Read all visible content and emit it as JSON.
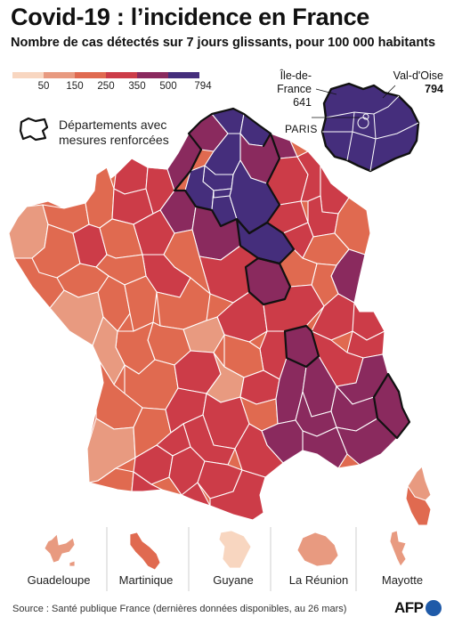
{
  "title": "Covid-19 : l’incidence en France",
  "subtitle": "Nombre de cas détectés sur 7 jours glissants, pour 100 000 habitants",
  "legend": {
    "bins": [
      {
        "label": "",
        "color": "#f8d6c0"
      },
      {
        "label": "50",
        "color": "#e89a80"
      },
      {
        "label": "150",
        "color": "#e06a50"
      },
      {
        "label": "250",
        "color": "#cc3c48"
      },
      {
        "label": "350",
        "color": "#8a2a5e"
      },
      {
        "label": "500",
        "color": "#452e7c"
      },
      {
        "label": "794",
        "color": ""
      }
    ],
    "reinforced_label": "Départements avec mesures renforcées"
  },
  "inset": {
    "region_name": "Île-de-France",
    "region_value": "641",
    "dept_name": "Val-d'Oise",
    "dept_value": "794",
    "city_label": "PARIS"
  },
  "overseas": [
    {
      "name": "Guadeloupe",
      "color": "#e89a80"
    },
    {
      "name": "Martinique",
      "color": "#e06a50"
    },
    {
      "name": "Guyane",
      "color": "#f8d6c0"
    },
    {
      "name": "La Réunion",
      "color": "#e89a80"
    },
    {
      "name": "Mayotte",
      "color": "#e89a80"
    }
  ],
  "source": "Source : Santé publique France (dernières données disponibles, au 26 mars)",
  "logo": "AFP"
}
